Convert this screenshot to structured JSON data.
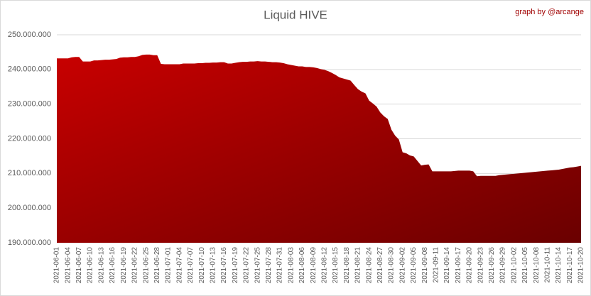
{
  "chart_data": {
    "type": "area",
    "title": "Liquid HIVE",
    "annotation": "graph by @arcange",
    "color": "#c00000",
    "grid": true,
    "ylim": [
      190000000,
      250000000
    ],
    "yticks": [
      {
        "value": 190000000,
        "label": "190.000.000"
      },
      {
        "value": 200000000,
        "label": "200.000.000"
      },
      {
        "value": 210000000,
        "label": "210.000.000"
      },
      {
        "value": 220000000,
        "label": "220.000.000"
      },
      {
        "value": 230000000,
        "label": "230.000.000"
      },
      {
        "value": 240000000,
        "label": "240.000.000"
      },
      {
        "value": 250000000,
        "label": "250.000.000"
      }
    ],
    "categories": [
      "2021-06-01",
      null,
      null,
      "2021-06-04",
      null,
      null,
      "2021-06-07",
      null,
      null,
      "2021-06-10",
      null,
      null,
      "2021-06-13",
      null,
      null,
      "2021-06-16",
      null,
      null,
      "2021-06-19",
      null,
      null,
      "2021-06-22",
      null,
      null,
      "2021-06-25",
      null,
      null,
      "2021-06-28",
      null,
      null,
      "2021-07-01",
      null,
      null,
      "2021-07-04",
      null,
      null,
      "2021-07-07",
      null,
      null,
      "2021-07-10",
      null,
      null,
      "2021-07-13",
      null,
      null,
      "2021-07-16",
      null,
      null,
      "2021-07-19",
      null,
      null,
      "2021-07-22",
      null,
      null,
      "2021-07-25",
      null,
      null,
      "2021-07-28",
      null,
      null,
      "2021-07-31",
      null,
      null,
      "2021-08-03",
      null,
      null,
      "2021-08-06",
      null,
      null,
      "2021-08-09",
      null,
      null,
      "2021-08-12",
      null,
      null,
      "2021-08-15",
      null,
      null,
      "2021-08-18",
      null,
      null,
      "2021-08-21",
      null,
      null,
      "2021-08-24",
      null,
      null,
      "2021-08-27",
      null,
      null,
      "2021-08-30",
      null,
      null,
      "2021-09-02",
      null,
      null,
      "2021-09-05",
      null,
      null,
      "2021-09-08",
      null,
      null,
      "2021-09-11",
      null,
      null,
      "2021-09-14",
      null,
      null,
      "2021-09-17",
      null,
      null,
      "2021-09-20",
      null,
      null,
      "2021-09-23",
      null,
      null,
      "2021-09-26",
      null,
      null,
      "2021-09-29",
      null,
      null,
      "2021-10-02",
      null,
      null,
      "2021-10-05",
      null,
      null,
      "2021-10-08",
      null,
      null,
      "2021-10-11",
      null,
      null,
      "2021-10-14",
      null,
      null,
      "2021-10-17",
      null,
      null,
      "2021-10-20"
    ],
    "values": [
      243200000,
      243200000,
      243200000,
      243200000,
      243500000,
      243600000,
      243600000,
      242300000,
      242300000,
      242300000,
      242600000,
      242600000,
      242700000,
      242800000,
      242800000,
      242900000,
      243000000,
      243400000,
      243500000,
      243500000,
      243600000,
      243600000,
      243800000,
      244200000,
      244300000,
      244300000,
      244100000,
      244100000,
      241600000,
      241500000,
      241500000,
      241500000,
      241500000,
      241500000,
      241700000,
      241700000,
      241700000,
      241700000,
      241800000,
      241800000,
      241900000,
      241900000,
      242000000,
      242000000,
      242100000,
      242100000,
      241700000,
      241700000,
      241900000,
      242100000,
      242200000,
      242200000,
      242300000,
      242300000,
      242400000,
      242300000,
      242300000,
      242200000,
      242100000,
      242100000,
      242000000,
      241800000,
      241500000,
      241300000,
      241100000,
      240900000,
      240900000,
      240700000,
      240700000,
      240600000,
      240400000,
      240100000,
      239900000,
      239500000,
      239000000,
      238400000,
      237700000,
      237400000,
      237100000,
      236800000,
      235500000,
      234300000,
      233600000,
      233100000,
      231000000,
      230200000,
      229300000,
      227600000,
      226500000,
      225700000,
      222600000,
      220900000,
      219800000,
      216100000,
      215800000,
      215200000,
      214900000,
      213600000,
      212300000,
      212500000,
      212600000,
      210600000,
      210600000,
      210600000,
      210600000,
      210600000,
      210600000,
      210700000,
      210800000,
      210800000,
      210800000,
      210800000,
      210600000,
      209200000,
      209300000,
      209300000,
      209300000,
      209300000,
      209300000,
      209500000,
      209600000,
      209700000,
      209800000,
      209900000,
      210000000,
      210100000,
      210200000,
      210300000,
      210400000,
      210500000,
      210600000,
      210700000,
      210800000,
      210900000,
      211000000,
      211100000,
      211300000,
      211500000,
      211700000,
      211800000,
      212000000,
      212200000
    ]
  }
}
